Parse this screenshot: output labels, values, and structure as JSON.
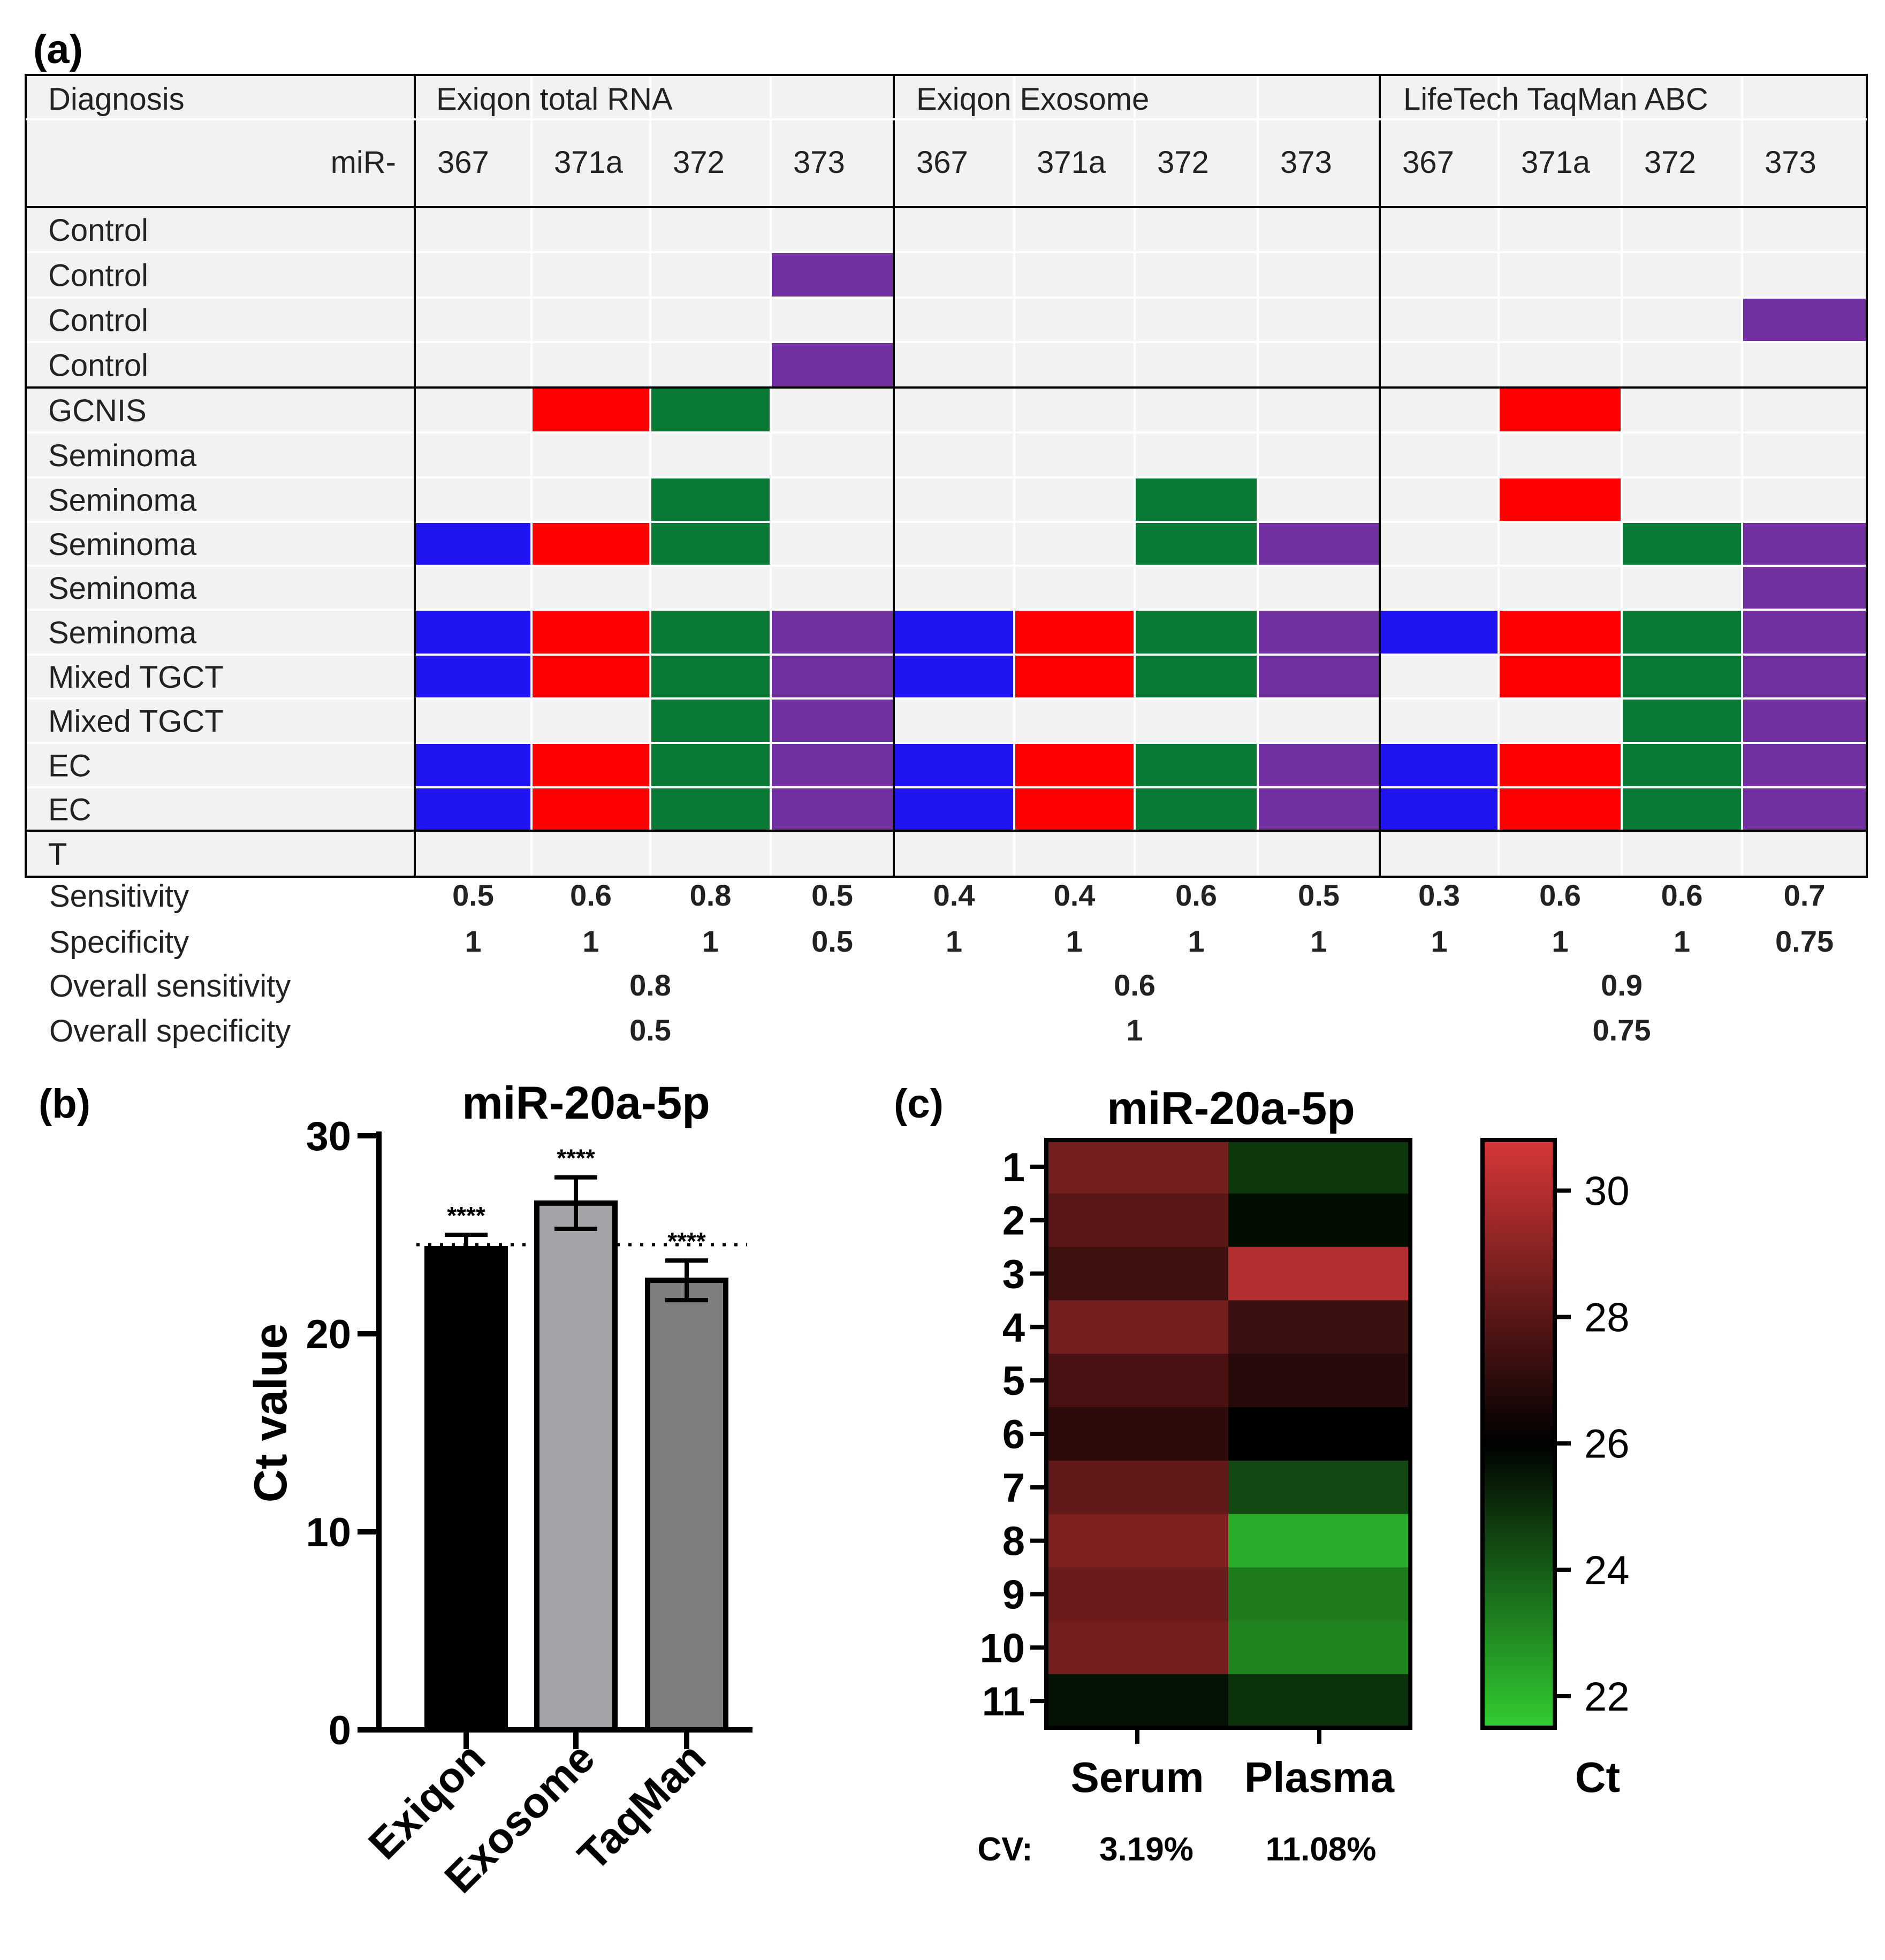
{
  "panel_a": {
    "label": "(a)",
    "diagnosis_header": "Diagnosis",
    "mir_prefix": "miR-",
    "groups": [
      "Exiqon total RNA",
      "Exiqon Exosome",
      "LifeTech TaqMan ABC"
    ],
    "mirs": [
      "367",
      "371a",
      "372",
      "373"
    ],
    "rows": [
      {
        "label": "Control",
        "cells": [
          0,
          0,
          0,
          0,
          0,
          0,
          0,
          0,
          0,
          0,
          0,
          0
        ]
      },
      {
        "label": "Control",
        "cells": [
          0,
          0,
          0,
          1,
          0,
          0,
          0,
          0,
          0,
          0,
          0,
          0
        ]
      },
      {
        "label": "Control",
        "cells": [
          0,
          0,
          0,
          0,
          0,
          0,
          0,
          0,
          0,
          0,
          0,
          1
        ]
      },
      {
        "label": "Control",
        "cells": [
          0,
          0,
          0,
          1,
          0,
          0,
          0,
          0,
          0,
          0,
          0,
          0
        ]
      },
      {
        "label": "GCNIS",
        "cells": [
          0,
          1,
          1,
          0,
          0,
          0,
          0,
          0,
          0,
          1,
          0,
          0
        ]
      },
      {
        "label": "Seminoma",
        "cells": [
          0,
          0,
          0,
          0,
          0,
          0,
          0,
          0,
          0,
          0,
          0,
          0
        ]
      },
      {
        "label": "Seminoma",
        "cells": [
          0,
          0,
          1,
          0,
          0,
          0,
          1,
          0,
          0,
          1,
          0,
          0
        ]
      },
      {
        "label": "Seminoma",
        "cells": [
          1,
          1,
          1,
          0,
          0,
          0,
          1,
          1,
          0,
          0,
          1,
          1
        ]
      },
      {
        "label": "Seminoma",
        "cells": [
          0,
          0,
          0,
          0,
          0,
          0,
          0,
          0,
          0,
          0,
          0,
          1
        ]
      },
      {
        "label": "Seminoma",
        "cells": [
          1,
          1,
          1,
          1,
          1,
          1,
          1,
          1,
          1,
          1,
          1,
          1
        ]
      },
      {
        "label": "Mixed TGCT",
        "cells": [
          1,
          1,
          1,
          1,
          1,
          1,
          1,
          1,
          0,
          1,
          1,
          1
        ]
      },
      {
        "label": "Mixed TGCT",
        "cells": [
          0,
          0,
          1,
          1,
          0,
          0,
          0,
          0,
          0,
          0,
          1,
          1
        ]
      },
      {
        "label": "EC",
        "cells": [
          1,
          1,
          1,
          1,
          1,
          1,
          1,
          1,
          1,
          1,
          1,
          1
        ]
      },
      {
        "label": "EC",
        "cells": [
          1,
          1,
          1,
          1,
          1,
          1,
          1,
          1,
          1,
          1,
          1,
          1
        ]
      },
      {
        "label": "T",
        "cells": [
          0,
          0,
          0,
          0,
          0,
          0,
          0,
          0,
          0,
          0,
          0,
          0
        ]
      }
    ],
    "mir_colors": [
      "#1f14f0",
      "#ff0000",
      "#087a35",
      "#7330a0"
    ],
    "empty_color": "#f2f2f2",
    "sensitivity": {
      "label": "Sensitivity",
      "values": [
        "0.5",
        "0.6",
        "0.8",
        "0.5",
        "0.4",
        "0.4",
        "0.6",
        "0.5",
        "0.3",
        "0.6",
        "0.6",
        "0.7"
      ]
    },
    "specificity": {
      "label": "Specificity",
      "values": [
        "1",
        "1",
        "1",
        "0.5",
        "1",
        "1",
        "1",
        "1",
        "1",
        "1",
        "1",
        "0.75"
      ]
    },
    "overall_sensitivity": {
      "label": "Overall sensitivity",
      "values": [
        "0.8",
        "0.6",
        "0.9"
      ]
    },
    "overall_specificity": {
      "label": "Overall specificity",
      "values": [
        "0.5",
        "1",
        "0.75"
      ]
    }
  },
  "panel_b": {
    "label": "(b)",
    "chart_data": {
      "type": "bar",
      "title": "miR-20a-5p",
      "ylabel": "Ct value",
      "categories": [
        "Exiqon",
        "Exosome",
        "TaqMan"
      ],
      "values": [
        24.3,
        26.6,
        22.7
      ],
      "errors": [
        0.7,
        1.3,
        1.0
      ],
      "significance": [
        "****",
        "****",
        "****"
      ],
      "ylim": [
        0,
        30
      ],
      "yticks": [
        0,
        10,
        20,
        30
      ],
      "reference_line": 24.5,
      "colors": [
        "#000000",
        "#a3a3a8",
        "#7f7f7f"
      ]
    }
  },
  "panel_c": {
    "label": "(c)",
    "chart_data": {
      "type": "heatmap",
      "title": "miR-20a-5p",
      "columns": [
        "Serum",
        "Plasma"
      ],
      "rows": [
        "1",
        "2",
        "3",
        "4",
        "5",
        "6",
        "7",
        "8",
        "9",
        "10",
        "11"
      ],
      "values": [
        [
          28.6,
          24.8
        ],
        [
          28.0,
          25.7
        ],
        [
          27.4,
          30.0
        ],
        [
          28.6,
          27.3
        ],
        [
          27.6,
          26.9
        ],
        [
          27.0,
          26.0
        ],
        [
          28.2,
          24.4
        ],
        [
          28.8,
          22.2
        ],
        [
          28.4,
          23.3
        ],
        [
          28.6,
          23.1
        ],
        [
          25.6,
          24.9
        ]
      ],
      "colorbar": {
        "label": "Ct",
        "min": 21.5,
        "max": 30.8,
        "ticks": [
          22,
          24,
          26,
          28,
          30
        ]
      },
      "cv_label": "CV:",
      "cv_values": [
        "3.19%",
        "11.08%"
      ]
    }
  }
}
